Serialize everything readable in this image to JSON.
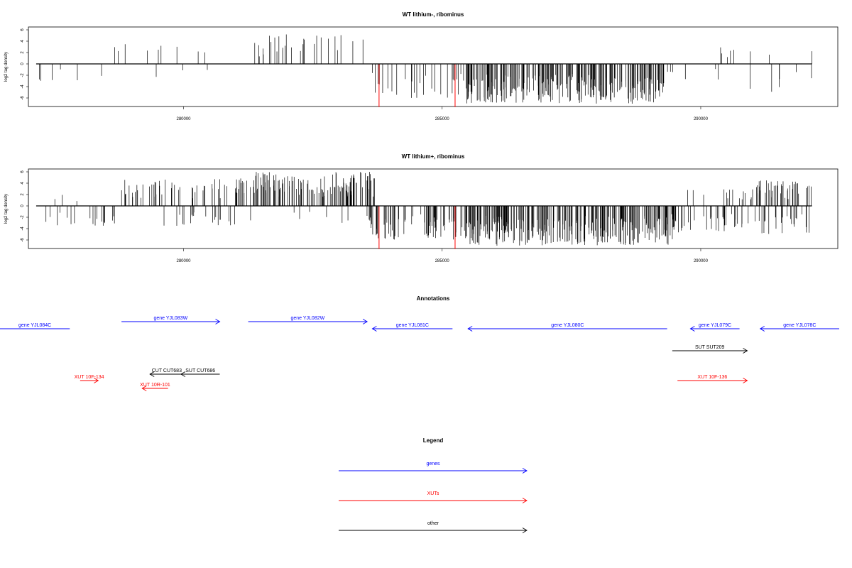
{
  "chart_data": [
    {
      "type": "bar",
      "title": "WT lithium-, ribominus",
      "ylabel": "log2 tag density",
      "xlim": [
        277000,
        292650
      ],
      "ylim": [
        -7.5,
        6.5
      ],
      "yticks": [
        -6,
        -4,
        -2,
        0,
        2,
        4,
        6
      ],
      "xticks": [
        280000,
        285000,
        290000
      ],
      "xtick_labels": [
        "280000",
        "285000",
        "290000"
      ],
      "data_range": [
        277150,
        292150
      ],
      "red_marks": [
        {
          "x": 283780,
          "y": -7.6
        },
        {
          "x": 285250,
          "y": -7.6
        }
      ],
      "density_profile": [
        {
          "from": 277150,
          "to": 278450,
          "dir": "neg",
          "density": 0.06,
          "max": 3
        },
        {
          "from": 278450,
          "to": 280800,
          "dir": "pos",
          "density": 0.05,
          "max": 3.5
        },
        {
          "from": 279300,
          "to": 280800,
          "dir": "neg",
          "density": 0.03,
          "max": 3
        },
        {
          "from": 281000,
          "to": 283600,
          "dir": "pos",
          "density": 0.15,
          "max": 5.2
        },
        {
          "from": 283600,
          "to": 285450,
          "dir": "neg",
          "density": 0.2,
          "max": 6
        },
        {
          "from": 285450,
          "to": 289300,
          "dir": "neg",
          "density": 0.9,
          "max": 7
        },
        {
          "from": 289300,
          "to": 290900,
          "dir": "neg",
          "density": 0.05,
          "max": 3
        },
        {
          "from": 290300,
          "to": 292150,
          "dir": "pos",
          "density": 0.06,
          "max": 3
        },
        {
          "from": 290900,
          "to": 292150,
          "dir": "neg",
          "density": 0.07,
          "max": 5
        }
      ]
    },
    {
      "type": "bar",
      "title": "WT lithium+, ribominus",
      "ylabel": "log2 tag density",
      "xlim": [
        277000,
        292650
      ],
      "ylim": [
        -7.5,
        6.5
      ],
      "yticks": [
        -6,
        -4,
        -2,
        0,
        2,
        4,
        6
      ],
      "xticks": [
        280000,
        285000,
        290000
      ],
      "xtick_labels": [
        "280000",
        "285000",
        "290000"
      ],
      "data_range": [
        277150,
        292150
      ],
      "red_marks": [
        {
          "x": 283780,
          "y": -7.6
        },
        {
          "x": 285250,
          "y": -7.6
        }
      ],
      "density_profile": [
        {
          "from": 277150,
          "to": 278800,
          "dir": "neg",
          "density": 0.15,
          "max": 3.5
        },
        {
          "from": 277500,
          "to": 278800,
          "dir": "pos",
          "density": 0.03,
          "max": 2
        },
        {
          "from": 278800,
          "to": 280900,
          "dir": "pos",
          "density": 0.3,
          "max": 4.8
        },
        {
          "from": 279600,
          "to": 281000,
          "dir": "neg",
          "density": 0.2,
          "max": 3.5
        },
        {
          "from": 281000,
          "to": 283700,
          "dir": "pos",
          "density": 0.7,
          "max": 6
        },
        {
          "from": 281000,
          "to": 283600,
          "dir": "neg",
          "density": 0.05,
          "max": 3
        },
        {
          "from": 283600,
          "to": 285450,
          "dir": "neg",
          "density": 0.5,
          "max": 6
        },
        {
          "from": 285450,
          "to": 289500,
          "dir": "neg",
          "density": 1.0,
          "max": 7
        },
        {
          "from": 289400,
          "to": 291000,
          "dir": "pos",
          "density": 0.12,
          "max": 3
        },
        {
          "from": 289400,
          "to": 292150,
          "dir": "neg",
          "density": 0.3,
          "max": 5
        },
        {
          "from": 291000,
          "to": 292150,
          "dir": "pos",
          "density": 0.5,
          "max": 4.5
        }
      ]
    }
  ],
  "annotations": {
    "title": "Annotations",
    "features": [
      {
        "label": "gene YJL084C",
        "color": "#0000ff",
        "start": 276000,
        "end": 277800,
        "dir": "none",
        "row": 1
      },
      {
        "label": "gene YJL083W",
        "color": "#0000ff",
        "start": 278800,
        "end": 280700,
        "dir": "right",
        "row": 0
      },
      {
        "label": "gene YJL082W",
        "color": "#0000ff",
        "start": 281250,
        "end": 283550,
        "dir": "right",
        "row": 0
      },
      {
        "label": "gene YJL081C",
        "color": "#0000ff",
        "start": 283650,
        "end": 285200,
        "dir": "left",
        "row": 1
      },
      {
        "label": "gene YJL080C",
        "color": "#0000ff",
        "start": 285500,
        "end": 289350,
        "dir": "left",
        "row": 1
      },
      {
        "label": "gene YJL079C",
        "color": "#0000ff",
        "start": 289800,
        "end": 290750,
        "dir": "left",
        "row": 1
      },
      {
        "label": "gene YJL078C",
        "color": "#0000ff",
        "start": 291150,
        "end": 294500,
        "dir": "left",
        "row": 1
      },
      {
        "label": "SUT SUT209",
        "color": "#000000",
        "start": 289450,
        "end": 290900,
        "dir": "right",
        "row": 2
      },
      {
        "label": "CUT CUT683",
        "color": "#000000",
        "start": 279350,
        "end": 280000,
        "dir": "left",
        "row": 3
      },
      {
        "label": "SUT CUT686",
        "color": "#000000",
        "start": 279950,
        "end": 280700,
        "dir": "left",
        "row": 3
      },
      {
        "label": "XUT 10F-134",
        "color": "#ff0000",
        "start": 278000,
        "end": 278350,
        "dir": "right",
        "row": 4
      },
      {
        "label": "XUT 10R-101",
        "color": "#ff0000",
        "start": 279200,
        "end": 279700,
        "dir": "left",
        "row": 5
      },
      {
        "label": "XUT 10F-136",
        "color": "#ff0000",
        "start": 289550,
        "end": 290900,
        "dir": "right",
        "row": 4
      }
    ]
  },
  "legend": {
    "title": "Legend",
    "items": [
      {
        "label": "genes",
        "color": "#0000ff"
      },
      {
        "label": "XUTs",
        "color": "#ff0000"
      },
      {
        "label": "other",
        "color": "#000000"
      }
    ]
  }
}
